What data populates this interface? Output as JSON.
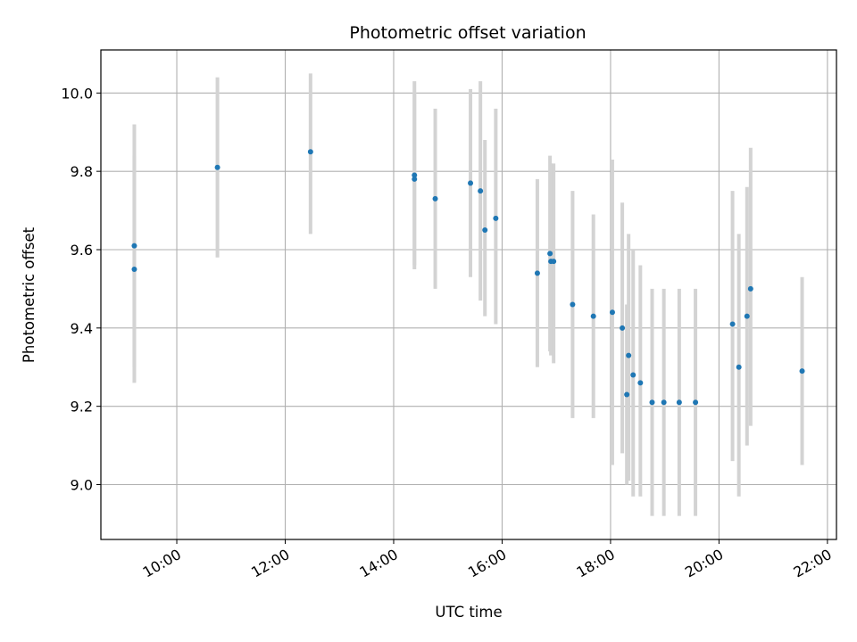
{
  "chart_data": {
    "type": "scatter",
    "title": "Photometric offset variation",
    "xlabel": "UTC time",
    "ylabel": "Photometric offset",
    "x_unit": "hours UTC",
    "xlim": [
      "08:36",
      "22:10"
    ],
    "ylim": [
      8.86,
      10.11
    ],
    "x_ticks": [
      "10:00",
      "12:00",
      "14:00",
      "16:00",
      "18:00",
      "20:00",
      "22:00"
    ],
    "y_ticks": [
      "9.0",
      "9.2",
      "9.4",
      "9.6",
      "9.8",
      "10.0"
    ],
    "grid": true,
    "point_color": "#1f77b4",
    "errorbar_color": "#d3d3d3",
    "points": [
      {
        "x": "09:13",
        "y": 9.61,
        "ylow": 9.3,
        "yhigh": 9.92
      },
      {
        "x": "09:13",
        "y": 9.55,
        "ylow": 9.26,
        "yhigh": 9.84
      },
      {
        "x": "10:45",
        "y": 9.81,
        "ylow": 9.58,
        "yhigh": 10.04
      },
      {
        "x": "12:28",
        "y": 9.85,
        "ylow": 9.64,
        "yhigh": 10.05
      },
      {
        "x": "14:23",
        "y": 9.79,
        "ylow": 9.55,
        "yhigh": 10.03
      },
      {
        "x": "14:23",
        "y": 9.78,
        "ylow": 9.56,
        "yhigh": 10.0
      },
      {
        "x": "14:46",
        "y": 9.73,
        "ylow": 9.5,
        "yhigh": 9.96
      },
      {
        "x": "15:25",
        "y": 9.77,
        "ylow": 9.53,
        "yhigh": 10.01
      },
      {
        "x": "15:36",
        "y": 9.75,
        "ylow": 9.47,
        "yhigh": 10.03
      },
      {
        "x": "15:41",
        "y": 9.65,
        "ylow": 9.43,
        "yhigh": 9.88
      },
      {
        "x": "15:53",
        "y": 9.68,
        "ylow": 9.41,
        "yhigh": 9.96
      },
      {
        "x": "16:39",
        "y": 9.54,
        "ylow": 9.3,
        "yhigh": 9.78
      },
      {
        "x": "16:53",
        "y": 9.59,
        "ylow": 9.34,
        "yhigh": 9.84
      },
      {
        "x": "16:54",
        "y": 9.57,
        "ylow": 9.33,
        "yhigh": 9.82
      },
      {
        "x": "16:57",
        "y": 9.57,
        "ylow": 9.31,
        "yhigh": 9.82
      },
      {
        "x": "17:18",
        "y": 9.46,
        "ylow": 9.17,
        "yhigh": 9.75
      },
      {
        "x": "17:41",
        "y": 9.43,
        "ylow": 9.17,
        "yhigh": 9.69
      },
      {
        "x": "18:02",
        "y": 9.44,
        "ylow": 9.05,
        "yhigh": 9.83
      },
      {
        "x": "18:13",
        "y": 9.4,
        "ylow": 9.08,
        "yhigh": 9.72
      },
      {
        "x": "18:18",
        "y": 9.23,
        "ylow": 9.0,
        "yhigh": 9.46
      },
      {
        "x": "18:20",
        "y": 9.33,
        "ylow": 9.01,
        "yhigh": 9.64
      },
      {
        "x": "18:25",
        "y": 9.28,
        "ylow": 8.97,
        "yhigh": 9.6
      },
      {
        "x": "18:33",
        "y": 9.26,
        "ylow": 8.97,
        "yhigh": 9.56
      },
      {
        "x": "18:46",
        "y": 9.21,
        "ylow": 8.92,
        "yhigh": 9.5
      },
      {
        "x": "18:59",
        "y": 9.21,
        "ylow": 8.92,
        "yhigh": 9.5
      },
      {
        "x": "19:16",
        "y": 9.21,
        "ylow": 8.92,
        "yhigh": 9.5
      },
      {
        "x": "19:34",
        "y": 9.21,
        "ylow": 8.92,
        "yhigh": 9.5
      },
      {
        "x": "20:15",
        "y": 9.41,
        "ylow": 9.06,
        "yhigh": 9.75
      },
      {
        "x": "20:22",
        "y": 9.3,
        "ylow": 8.97,
        "yhigh": 9.64
      },
      {
        "x": "20:31",
        "y": 9.43,
        "ylow": 9.1,
        "yhigh": 9.76
      },
      {
        "x": "20:35",
        "y": 9.5,
        "ylow": 9.15,
        "yhigh": 9.86
      },
      {
        "x": "21:32",
        "y": 9.29,
        "ylow": 9.05,
        "yhigh": 9.53
      }
    ]
  }
}
